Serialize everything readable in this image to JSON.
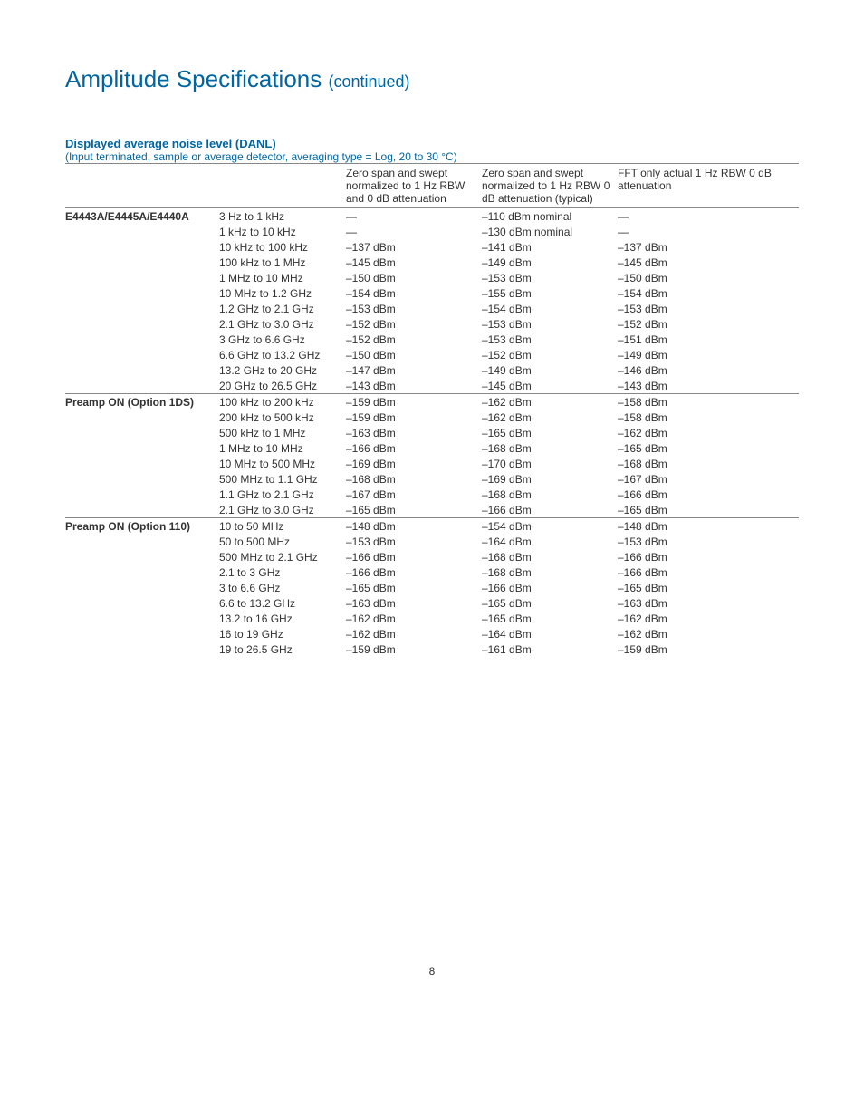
{
  "page": {
    "title_main": "Amplitude Specifications",
    "title_cont": "(continued)",
    "number": "8"
  },
  "section": {
    "title": "Displayed average noise level (DANL)",
    "subtitle": "(Input terminated, sample or average detector, averaging type = Log, 20 to 30 °C)"
  },
  "table": {
    "headers": {
      "col_a": "Zero span and swept normalized to 1 Hz RBW and 0 dB attenuation",
      "col_b": "Zero span and swept normalized to 1 Hz RBW 0 dB attenuation (typical)",
      "col_c": "FFT only actual 1 Hz RBW 0 dB attenuation"
    },
    "groups": [
      {
        "label": "E4443A/E4445A/E4440A",
        "rows": [
          {
            "range": "3 Hz to 1 kHz",
            "a": "—",
            "b": "–110 dBm nominal",
            "c": "—"
          },
          {
            "range": "1 kHz to 10 kHz",
            "a": "—",
            "b": "–130 dBm nominal",
            "c": "—"
          },
          {
            "range": "10 kHz to 100 kHz",
            "a": "–137 dBm",
            "b": "–141 dBm",
            "c": "–137 dBm"
          },
          {
            "range": "100 kHz to 1 MHz",
            "a": "–145 dBm",
            "b": "–149 dBm",
            "c": "–145 dBm"
          },
          {
            "range": "1 MHz to 10 MHz",
            "a": "–150 dBm",
            "b": "–153 dBm",
            "c": "–150 dBm"
          },
          {
            "range": "10 MHz to 1.2 GHz",
            "a": "–154 dBm",
            "b": "–155 dBm",
            "c": "–154 dBm"
          },
          {
            "range": "1.2 GHz to 2.1 GHz",
            "a": "–153 dBm",
            "b": "–154 dBm",
            "c": "–153 dBm"
          },
          {
            "range": "2.1 GHz to 3.0 GHz",
            "a": "–152 dBm",
            "b": "–153 dBm",
            "c": "–152 dBm"
          },
          {
            "range": "3 GHz to 6.6 GHz",
            "a": "–152 dBm",
            "b": "–153 dBm",
            "c": "–151 dBm"
          },
          {
            "range": "6.6 GHz to 13.2 GHz",
            "a": "–150 dBm",
            "b": "–152 dBm",
            "c": "–149 dBm"
          },
          {
            "range": "13.2 GHz to 20 GHz",
            "a": "–147 dBm",
            "b": "–149 dBm",
            "c": "–146 dBm"
          },
          {
            "range": "20 GHz to 26.5 GHz",
            "a": "–143 dBm",
            "b": "–145 dBm",
            "c": "–143 dBm"
          }
        ]
      },
      {
        "label": "Preamp ON (Option 1DS)",
        "rows": [
          {
            "range": "100 kHz to 200 kHz",
            "a": "–159 dBm",
            "b": "–162 dBm",
            "c": "–158 dBm"
          },
          {
            "range": "200 kHz to 500 kHz",
            "a": "–159 dBm",
            "b": "–162 dBm",
            "c": "–158 dBm"
          },
          {
            "range": "500 kHz to 1 MHz",
            "a": "–163 dBm",
            "b": "–165 dBm",
            "c": "–162 dBm"
          },
          {
            "range": "1 MHz to 10 MHz",
            "a": "–166 dBm",
            "b": "–168 dBm",
            "c": "–165 dBm"
          },
          {
            "range": "10 MHz to 500 MHz",
            "a": "–169 dBm",
            "b": "–170 dBm",
            "c": "–168 dBm"
          },
          {
            "range": "500 MHz to 1.1 GHz",
            "a": "–168 dBm",
            "b": "–169 dBm",
            "c": "–167 dBm"
          },
          {
            "range": "1.1 GHz to 2.1 GHz",
            "a": "–167 dBm",
            "b": "–168 dBm",
            "c": "–166 dBm"
          },
          {
            "range": "2.1 GHz to 3.0 GHz",
            "a": "–165 dBm",
            "b": "–166 dBm",
            "c": "–165 dBm"
          }
        ]
      },
      {
        "label": "Preamp ON (Option 110)",
        "rows": [
          {
            "range": "10 to 50 MHz",
            "a": "–148 dBm",
            "b": "–154 dBm",
            "c": "–148 dBm"
          },
          {
            "range": "50 to 500 MHz",
            "a": "–153 dBm",
            "b": "–164 dBm",
            "c": "–153 dBm"
          },
          {
            "range": "500 MHz to 2.1 GHz",
            "a": "–166 dBm",
            "b": "–168 dBm",
            "c": "–166 dBm"
          },
          {
            "range": "2.1 to 3 GHz",
            "a": "–166 dBm",
            "b": "–168 dBm",
            "c": "–166 dBm"
          },
          {
            "range": "3 to 6.6 GHz",
            "a": "–165 dBm",
            "b": "–166 dBm",
            "c": "–165 dBm"
          },
          {
            "range": "6.6 to 13.2 GHz",
            "a": "–163 dBm",
            "b": "–165 dBm",
            "c": "–163 dBm"
          },
          {
            "range": "13.2 to 16 GHz",
            "a": "–162 dBm",
            "b": "–165 dBm",
            "c": "–162 dBm"
          },
          {
            "range": "16 to 19 GHz",
            "a": "–162 dBm",
            "b": "–164 dBm",
            "c": "–162 dBm"
          },
          {
            "range": "19 to 26.5 GHz",
            "a": "–159 dBm",
            "b": "–161 dBm",
            "c": "–159 dBm"
          }
        ]
      }
    ]
  }
}
